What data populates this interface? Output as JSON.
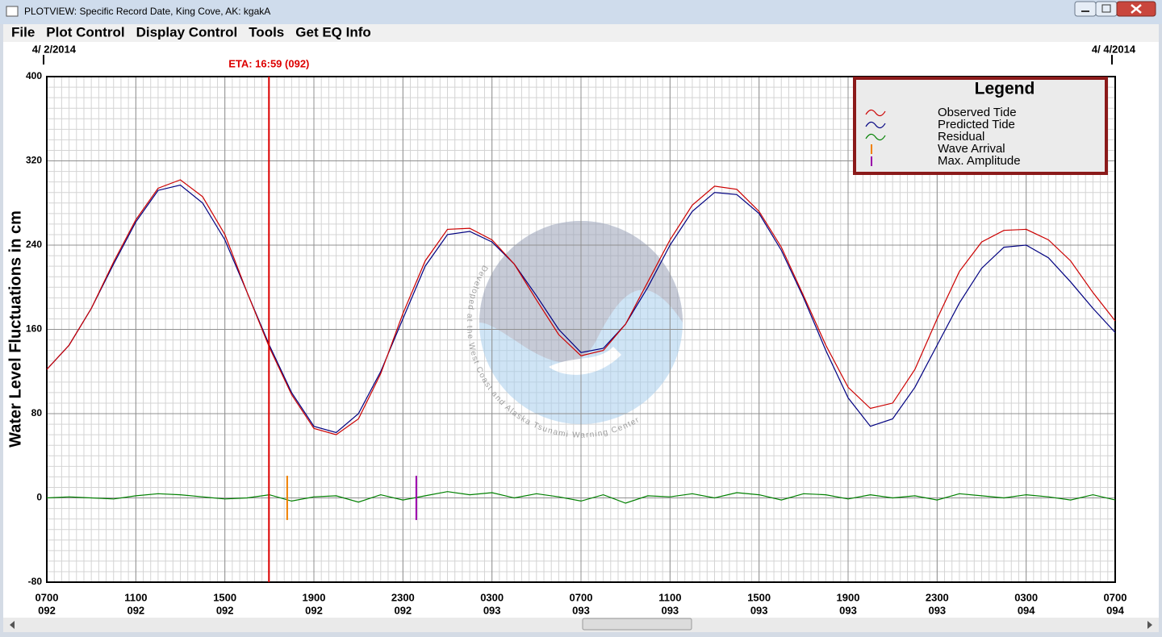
{
  "window": {
    "title": "PLOTVIEW: Specific Record Date, King Cove, AK: kgakA",
    "menu": [
      "File",
      "Plot Control",
      "Display Control",
      "Tools",
      "Get EQ Info"
    ]
  },
  "chart_data": {
    "type": "line",
    "y_label": "Water Level Fluctuations in cm",
    "watermark": "Developed at the West Coast and Alaska Tsunami Warning Center",
    "x": [
      0,
      1,
      2,
      3,
      4,
      5,
      6,
      7,
      8,
      9,
      10,
      11,
      12,
      13,
      14,
      15,
      16,
      17,
      18,
      19,
      20,
      21,
      22,
      23,
      24,
      25,
      26,
      27,
      28,
      29,
      30,
      31,
      32,
      33,
      34,
      35,
      36,
      37,
      38,
      39,
      40,
      41,
      42,
      43,
      44,
      45,
      46,
      47,
      48
    ],
    "series": [
      {
        "name": "Observed Tide",
        "color": "#cc0000",
        "values": [
          122,
          145,
          180,
          224,
          264,
          294,
          302,
          286,
          250,
          195,
          143,
          98,
          66,
          60,
          75,
          118,
          175,
          225,
          255,
          256,
          245,
          222,
          188,
          155,
          135,
          140,
          165,
          205,
          245,
          278,
          296,
          293,
          272,
          238,
          192,
          145,
          105,
          85,
          90,
          122,
          170,
          215,
          243,
          254,
          255,
          245,
          225,
          195,
          168
        ]
      },
      {
        "name": "Predicted Tide",
        "color": "#000080",
        "values": [
          122,
          145,
          180,
          222,
          262,
          292,
          297,
          280,
          245,
          195,
          145,
          100,
          68,
          62,
          80,
          120,
          170,
          220,
          250,
          253,
          243,
          222,
          192,
          160,
          138,
          142,
          165,
          200,
          240,
          272,
          290,
          288,
          270,
          235,
          190,
          140,
          95,
          68,
          75,
          105,
          145,
          185,
          218,
          238,
          240,
          228,
          205,
          180,
          157
        ]
      },
      {
        "name": "Residual",
        "color": "#008000",
        "values": [
          0,
          1,
          0,
          -1,
          2,
          4,
          3,
          1,
          -1,
          0,
          3,
          -3,
          1,
          2,
          -4,
          3,
          -2,
          2,
          6,
          3,
          5,
          0,
          4,
          1,
          -3,
          3,
          -5,
          2,
          1,
          4,
          0,
          5,
          3,
          -2,
          4,
          3,
          -1,
          3,
          0,
          2,
          -2,
          4,
          2,
          0,
          3,
          1,
          -2,
          3,
          -2
        ]
      }
    ],
    "markers": [
      {
        "name": "Wave Arrival",
        "color": "#f08000",
        "x": 10.8,
        "y_range": [
          -21,
          21
        ]
      },
      {
        "name": "Max. Amplitude",
        "color": "#9900aa",
        "x": 16.6,
        "y_range": [
          -21,
          21
        ]
      }
    ],
    "eta": {
      "label": "ETA: 16:59 (092)",
      "x": 9.98,
      "color": "#dd0000"
    },
    "legend": {
      "title": "Legend",
      "position": "upper right"
    },
    "xlim": [
      0,
      48
    ],
    "ylim": [
      -80,
      400
    ],
    "yticks": [
      -80,
      0,
      80,
      160,
      240,
      320,
      400
    ],
    "xticks": [
      {
        "value": 0,
        "label": "0700"
      },
      {
        "value": 4,
        "label": "1100"
      },
      {
        "value": 8,
        "label": "1500"
      },
      {
        "value": 12,
        "label": "1900"
      },
      {
        "value": 16,
        "label": "2300"
      },
      {
        "value": 20,
        "label": "0300"
      },
      {
        "value": 24,
        "label": "0700"
      },
      {
        "value": 28,
        "label": "1100"
      },
      {
        "value": 32,
        "label": "1500"
      },
      {
        "value": 36,
        "label": "1900"
      },
      {
        "value": 40,
        "label": "2300"
      },
      {
        "value": 44,
        "label": "0300"
      },
      {
        "value": 48,
        "label": "0700"
      }
    ],
    "xtick_days": [
      "092",
      "092",
      "092",
      "092",
      "092",
      "093",
      "093",
      "093",
      "093",
      "093",
      "093",
      "094",
      "094"
    ],
    "date_labels": [
      {
        "value": 0,
        "label": "4/ 2/2014"
      },
      {
        "value": 48,
        "label": "4/ 4/2014"
      }
    ],
    "grid": true
  }
}
